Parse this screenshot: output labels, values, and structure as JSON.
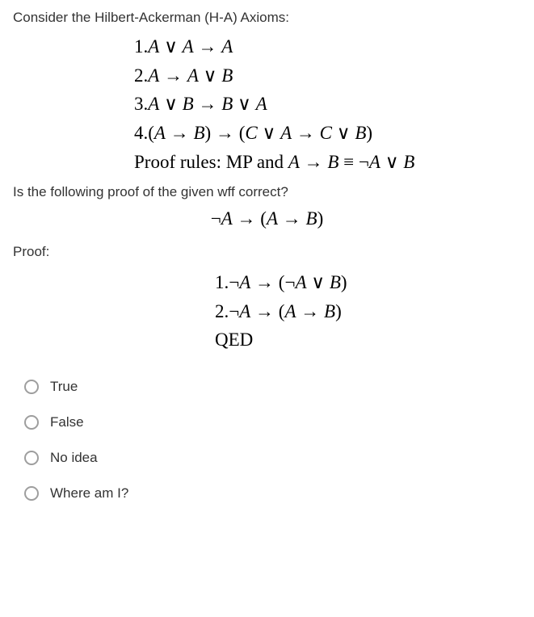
{
  "intro": "Consider the Hilbert-Ackerman (H-A) Axioms:",
  "axioms": {
    "line1": "1.A ∨ A → A",
    "line2": "2.A → A ∨ B",
    "line3": "3.A ∨ B → B ∨ A",
    "line4": "4.(A → B) → (C ∨ A → C ∨ B)",
    "rules": "Proof rules: MP and A → B ≡ ¬A ∨ B"
  },
  "question": "Is the following proof of the given wff correct?",
  "wff": "¬A → (A → B)",
  "proof_label": "Proof:",
  "proof": {
    "line1": "1.¬A → (¬A ∨ B)",
    "line2": "2.¬A → (A → B)",
    "qed": "QED"
  },
  "options": [
    {
      "label": "True"
    },
    {
      "label": "False"
    },
    {
      "label": "No idea"
    },
    {
      "label": "Where am I?"
    }
  ],
  "colors": {
    "text": "#333333",
    "math": "#000000",
    "radio_border": "#9e9e9e",
    "background": "#ffffff"
  },
  "typography": {
    "body_fontsize": 17,
    "math_fontsize": 23,
    "math_font": "Times New Roman"
  }
}
